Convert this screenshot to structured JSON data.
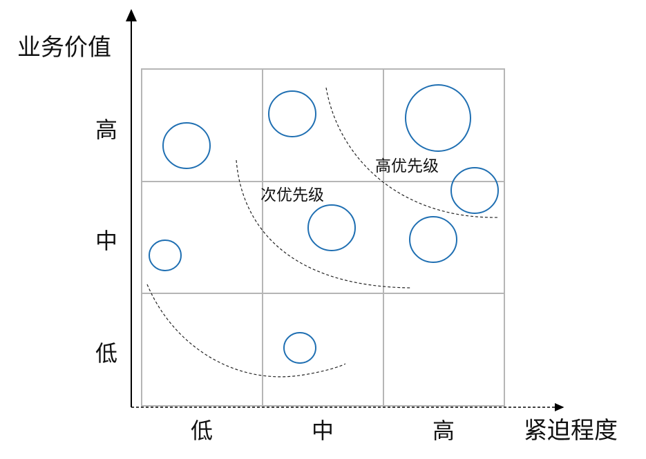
{
  "y_axis": {
    "title": "业务价值",
    "levels": [
      "高",
      "中",
      "低"
    ]
  },
  "x_axis": {
    "title": "紧迫程度",
    "levels": [
      "低",
      "中",
      "高"
    ]
  },
  "zones": {
    "high_priority": "高优先级",
    "secondary_priority": "次优先级"
  },
  "colors": {
    "bubble": "#1f6fb2",
    "grid": "#b5b5b5",
    "axis": "#000000"
  }
}
